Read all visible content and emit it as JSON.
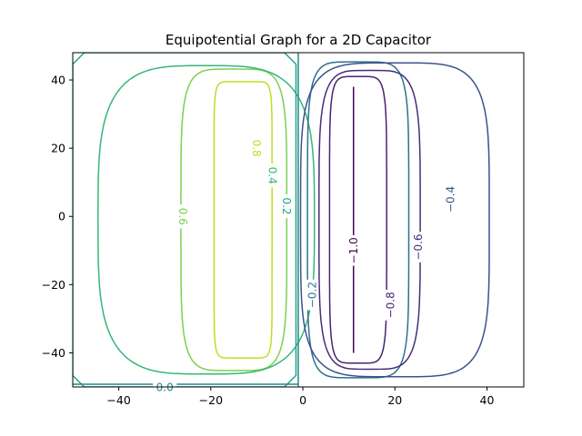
{
  "chart_data": {
    "type": "contour",
    "title": "Equipotential Graph for a 2D Capacitor",
    "xlabel": "",
    "ylabel": "",
    "xlim": [
      -50,
      48
    ],
    "ylim": [
      -50,
      48
    ],
    "xticks": [
      -40,
      -20,
      0,
      20,
      40
    ],
    "yticks": [
      40,
      20,
      0,
      -20,
      -40
    ],
    "xtick_labels": [
      "−40",
      "−20",
      "0",
      "20",
      "40"
    ],
    "ytick_labels": [
      "40",
      "20",
      "0",
      "−20",
      "−40"
    ],
    "grid": false,
    "colormap": "viridis",
    "levels": [
      {
        "value": 0.8,
        "label": "0.8",
        "color": "#bddf26",
        "cx": -13,
        "cy": -1,
        "rx": 6.3,
        "ry": 40.5,
        "n": 10,
        "label_pos": [
          -10,
          20
        ],
        "label_rot": 90
      },
      {
        "value": 0.6,
        "label": "0.6",
        "color": "#7ad151",
        "cx": -15,
        "cy": -1,
        "rx": 11.5,
        "ry": 44.2,
        "n": 5,
        "label_pos": [
          -26,
          0
        ],
        "label_rot": 90
      },
      {
        "value": 0.4,
        "label": "0.4",
        "color": "#35b779",
        "cx": -21,
        "cy": -1,
        "rx": 23.5,
        "ry": 45.2,
        "n": 3.6,
        "label_pos": [
          -6.5,
          12
        ],
        "label_rot": 90
      },
      {
        "value": 0.2,
        "label": "0.2",
        "color": "#21a685",
        "shape": "box",
        "x1": -50,
        "x2": -1.5,
        "y1": -50,
        "y2": 48,
        "r": 2.5,
        "label_pos": [
          -3.5,
          3
        ],
        "label_rot": 90
      },
      {
        "value": 0.0,
        "label": "0.0",
        "color": "#23898e",
        "shape": "bottom",
        "label_pos": [
          -30,
          -50
        ],
        "label_rot": 0
      },
      {
        "value": -0.2,
        "label": "−0.2",
        "color": "#2c728e",
        "cx": 12,
        "cy": -1,
        "rx": 11,
        "ry": 46.3,
        "n": 5.5,
        "label_pos": [
          2,
          -23
        ],
        "label_rot": -90
      },
      {
        "value": -0.4,
        "label": "−0.4",
        "color": "#3b528b",
        "cx": 20,
        "cy": -1,
        "rx": 20.5,
        "ry": 46,
        "n": 4.5,
        "label_pos": [
          32,
          5
        ],
        "label_rot": -90
      },
      {
        "value": -0.6,
        "label": "−0.6",
        "color": "#472d7b",
        "cx": 14.5,
        "cy": -1,
        "rx": 11,
        "ry": 43.8,
        "n": 4.5,
        "label_pos": [
          25,
          -9
        ],
        "label_rot": -90
      },
      {
        "value": -0.8,
        "label": "−0.8",
        "color": "#482374",
        "cx": 12,
        "cy": -1,
        "rx": 6.2,
        "ry": 42,
        "n": 6,
        "label_pos": [
          19,
          -26
        ],
        "label_rot": -90
      },
      {
        "value": -1.0,
        "label": "−1.0",
        "color": "#440154",
        "shape": "line",
        "x": 11,
        "y1": -40,
        "y2": 38,
        "label_pos": [
          11,
          -10
        ],
        "label_rot": -90
      }
    ]
  }
}
